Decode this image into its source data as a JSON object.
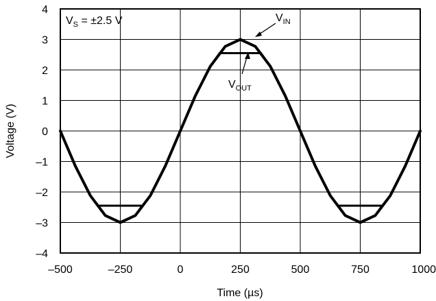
{
  "chart_data": {
    "type": "line",
    "xlabel": "Time (µs)",
    "ylabel": "Voltage (V)",
    "xlim": [
      -500,
      1000
    ],
    "ylim": [
      -4,
      4
    ],
    "xticks": [
      -500,
      -250,
      0,
      250,
      500,
      750,
      1000
    ],
    "yticks": [
      4,
      3,
      2,
      1,
      0,
      -1,
      -2,
      -3,
      -4
    ],
    "xtick_labels": [
      "–500",
      "–250",
      "0",
      "250",
      "500",
      "750",
      "1000"
    ],
    "ytick_labels": [
      "4",
      "3",
      "2",
      "1",
      "0",
      "–1",
      "–2",
      "–3",
      "–4"
    ],
    "grid": true,
    "series": [
      {
        "name": "VIN",
        "x": [
          -500,
          -437.5,
          -375,
          -312.5,
          -250,
          -187.5,
          -125,
          -62.5,
          0,
          62.5,
          125,
          187.5,
          250,
          312.5,
          375,
          437.5,
          500,
          562.5,
          625,
          687.5,
          750,
          812.5,
          875,
          937.5,
          1000
        ],
        "values": [
          0,
          -1.15,
          -2.12,
          -2.77,
          -3.0,
          -2.77,
          -2.12,
          -1.15,
          0,
          1.15,
          2.12,
          2.77,
          3.0,
          2.77,
          2.12,
          1.15,
          0,
          -1.15,
          -2.12,
          -2.77,
          -3.0,
          -2.77,
          -2.12,
          -1.15,
          0
        ]
      },
      {
        "name": "VOUT",
        "x": [
          -500,
          -437.5,
          -375,
          -343,
          -312.5,
          -250,
          -187.5,
          -157,
          -125,
          -62.5,
          0,
          62.5,
          125,
          164,
          187.5,
          250,
          312.5,
          336,
          375,
          437.5,
          500,
          562.5,
          625,
          657,
          687.5,
          750,
          812.5,
          843,
          875,
          937.5,
          1000
        ],
        "values": [
          0,
          -1.15,
          -2.12,
          -2.45,
          -2.45,
          -2.45,
          -2.45,
          -2.45,
          -2.12,
          -1.15,
          0,
          1.15,
          2.12,
          2.55,
          2.55,
          2.55,
          2.55,
          2.55,
          2.12,
          1.15,
          0,
          -1.15,
          -2.12,
          -2.45,
          -2.45,
          -2.45,
          -2.45,
          -2.45,
          -2.12,
          -1.15,
          0
        ]
      }
    ],
    "annotations": {
      "supply": {
        "main": "V",
        "sub": "S",
        "rest": " = ±2.5 V"
      },
      "vin": {
        "main": "V",
        "sub": "IN"
      },
      "vout": {
        "main": "V",
        "sub": "OUT"
      }
    }
  }
}
